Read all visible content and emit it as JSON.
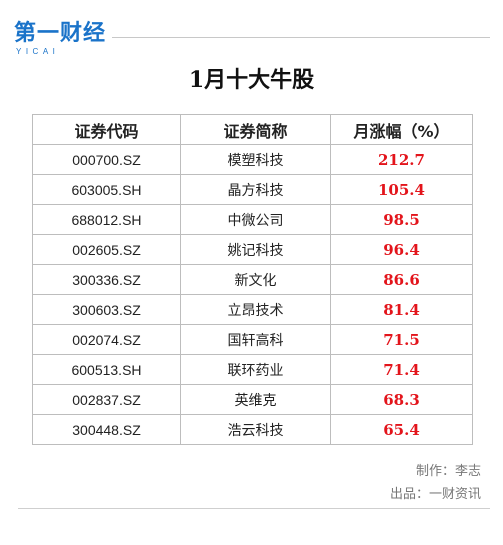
{
  "brand": {
    "name_cn": "第一财经",
    "name_en": "YICAI"
  },
  "chart_data": {
    "type": "table",
    "title": "1月十大牛股",
    "columns": [
      "证券代码",
      "证券简称",
      "月涨幅（%）"
    ],
    "rows": [
      {
        "code": "000700.SZ",
        "name": "模塑科技",
        "change": "212.7"
      },
      {
        "code": "603005.SH",
        "name": "晶方科技",
        "change": "105.4"
      },
      {
        "code": "688012.SH",
        "name": "中微公司",
        "change": "98.5"
      },
      {
        "code": "002605.SZ",
        "name": "姚记科技",
        "change": "96.4"
      },
      {
        "code": "300336.SZ",
        "name": "新文化",
        "change": "86.6"
      },
      {
        "code": "300603.SZ",
        "name": "立昂技术",
        "change": "81.4"
      },
      {
        "code": "002074.SZ",
        "name": "国轩高科",
        "change": "71.5"
      },
      {
        "code": "600513.SH",
        "name": "联环药业",
        "change": "71.4"
      },
      {
        "code": "002837.SZ",
        "name": "英维克",
        "change": "68.3"
      },
      {
        "code": "300448.SZ",
        "name": "浩云科技",
        "change": "65.4"
      }
    ],
    "highlight_color": "#e3141b"
  },
  "footer": {
    "maker": "制作：李志",
    "source": "出品：一财资讯"
  }
}
